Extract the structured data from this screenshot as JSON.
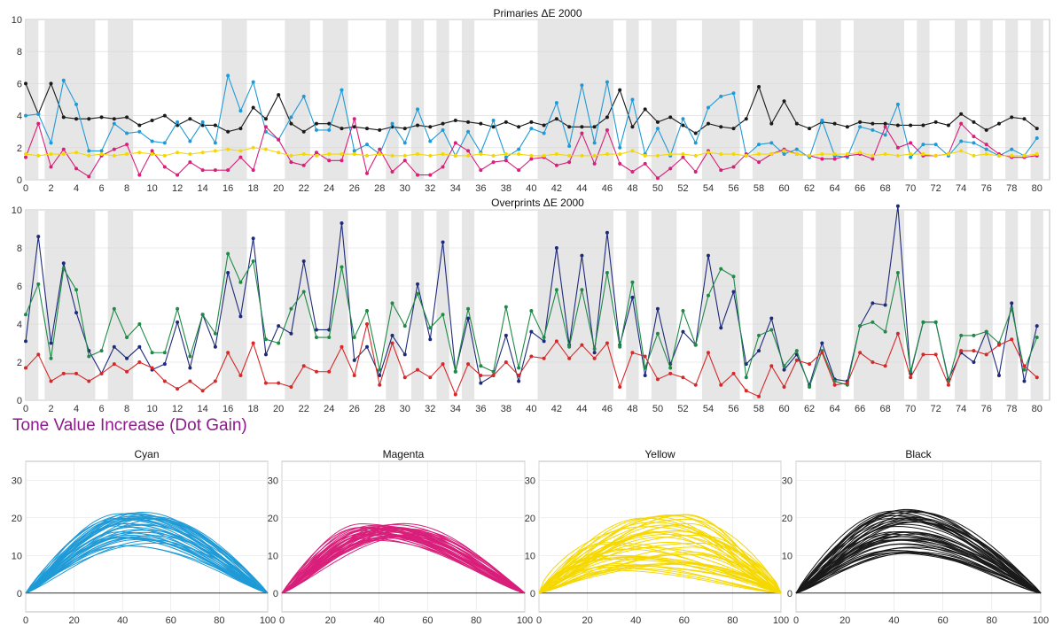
{
  "section_title": "Tone Value Increase (Dot Gain)",
  "chart_data": [
    {
      "id": "primaries",
      "type": "line",
      "title": "Primaries  ΔE 2000",
      "x_ticks": [
        0,
        2,
        4,
        6,
        8,
        10,
        12,
        14,
        16,
        18,
        20,
        22,
        24,
        26,
        28,
        30,
        32,
        34,
        36,
        38,
        40,
        42,
        44,
        46,
        48,
        50,
        52,
        54,
        56,
        58,
        60,
        62,
        64,
        66,
        68,
        70,
        72,
        74,
        76,
        78,
        80
      ],
      "y_ticks": [
        0,
        2,
        4,
        6,
        8,
        10
      ],
      "xlim": [
        0,
        81
      ],
      "ylim": [
        0,
        10
      ],
      "shaded_x_ranges": [
        [
          0.0,
          1.0
        ],
        [
          1.5,
          5.5
        ],
        [
          6.5,
          8.5
        ],
        [
          15.5,
          17.5
        ],
        [
          20.5,
          22.5
        ],
        [
          23.5,
          25.5
        ],
        [
          28.5,
          29.5
        ],
        [
          30.5,
          31.5
        ],
        [
          32.5,
          33.5
        ],
        [
          34.5,
          35.5
        ],
        [
          40.5,
          46.5
        ],
        [
          47.5,
          48.5
        ],
        [
          49.5,
          51.5
        ],
        [
          53.5,
          56.5
        ],
        [
          57.5,
          61.5
        ],
        [
          62.5,
          64.5
        ],
        [
          65.5,
          69.5
        ],
        [
          70.5,
          71.5
        ],
        [
          73.5,
          74.5
        ],
        [
          75.5,
          76.5
        ],
        [
          77.5,
          78.5
        ],
        [
          79.5,
          80.5
        ]
      ],
      "grid": true,
      "series": [
        {
          "color": "#1a1a1a",
          "values": [
            6.0,
            4.1,
            6.0,
            3.9,
            3.8,
            3.8,
            3.9,
            3.8,
            3.9,
            3.4,
            3.7,
            4.0,
            3.4,
            3.8,
            3.4,
            3.4,
            3.0,
            3.2,
            4.5,
            3.8,
            5.3,
            3.5,
            3.0,
            3.5,
            3.5,
            3.2,
            3.3,
            3.2,
            3.1,
            3.3,
            3.2,
            3.4,
            3.3,
            3.5,
            3.7,
            3.6,
            3.5,
            3.3,
            3.6,
            3.3,
            3.6,
            3.4,
            3.8,
            3.3,
            3.3,
            3.3,
            3.9,
            5.6,
            3.3,
            4.4,
            3.6,
            3.9,
            3.4,
            2.9,
            3.5,
            3.3,
            3.2,
            3.8,
            5.8,
            3.5,
            4.9,
            3.5,
            3.2,
            3.6,
            3.5,
            3.3,
            3.6,
            3.5,
            3.5,
            3.4,
            3.4,
            3.4,
            3.6,
            3.4,
            4.1,
            3.6,
            3.1,
            3.5,
            3.9,
            3.8,
            3.2
          ]
        },
        {
          "color": "#1f9ad6",
          "values": [
            4.0,
            4.1,
            2.3,
            6.2,
            4.7,
            1.8,
            1.8,
            3.5,
            2.9,
            3.0,
            2.4,
            2.3,
            3.6,
            2.4,
            3.6,
            2.3,
            6.5,
            4.3,
            6.1,
            3.0,
            2.5,
            3.9,
            5.2,
            3.1,
            3.1,
            5.6,
            1.8,
            2.2,
            1.6,
            3.5,
            2.3,
            4.4,
            2.4,
            3.1,
            1.5,
            3.0,
            1.7,
            3.7,
            1.4,
            1.9,
            3.2,
            2.9,
            4.8,
            2.1,
            5.9,
            2.3,
            6.1,
            2.0,
            5.0,
            1.6,
            3.2,
            1.5,
            3.8,
            2.3,
            4.5,
            5.2,
            5.4,
            1.5,
            2.2,
            2.3,
            1.6,
            1.9,
            1.4,
            3.7,
            1.5,
            1.4,
            3.3,
            3.1,
            2.8,
            4.7,
            1.4,
            2.2,
            2.2,
            1.5,
            2.4,
            2.3,
            1.9,
            1.5,
            1.9,
            1.5,
            2.6
          ]
        },
        {
          "color": "#d81f7a",
          "values": [
            1.4,
            3.5,
            0.8,
            1.9,
            0.7,
            0.2,
            1.5,
            1.9,
            2.2,
            0.3,
            1.8,
            0.8,
            0.3,
            1.1,
            0.6,
            0.6,
            0.6,
            1.4,
            0.6,
            3.3,
            2.5,
            1.1,
            0.9,
            1.7,
            1.2,
            1.2,
            3.8,
            0.4,
            1.9,
            0.5,
            1.2,
            0.3,
            0.3,
            0.8,
            2.3,
            1.8,
            0.6,
            1.1,
            1.2,
            0.6,
            1.3,
            1.4,
            0.9,
            1.1,
            2.9,
            1.0,
            3.1,
            1.0,
            0.5,
            1.0,
            0.1,
            0.7,
            1.4,
            0.5,
            1.8,
            0.6,
            0.8,
            1.6,
            1.1,
            1.6,
            1.9,
            1.6,
            1.5,
            1.3,
            1.3,
            1.5,
            1.6,
            1.3,
            3.3,
            2.0,
            2.3,
            1.5,
            1.5,
            1.6,
            3.5,
            2.7,
            2.2,
            1.6,
            1.4,
            1.4,
            1.5
          ]
        },
        {
          "color": "#f5d800",
          "values": [
            1.6,
            1.5,
            1.6,
            1.6,
            1.7,
            1.5,
            1.6,
            1.5,
            1.6,
            1.7,
            1.6,
            1.5,
            1.7,
            1.6,
            1.7,
            1.8,
            1.9,
            1.8,
            2.0,
            1.9,
            1.7,
            1.5,
            1.6,
            1.5,
            1.6,
            1.6,
            1.6,
            1.5,
            1.6,
            1.5,
            1.5,
            1.6,
            1.5,
            1.6,
            1.5,
            1.5,
            1.6,
            1.5,
            1.6,
            1.6,
            1.5,
            1.5,
            1.6,
            1.5,
            1.5,
            1.5,
            1.6,
            1.6,
            1.8,
            1.5,
            1.5,
            1.6,
            1.6,
            1.5,
            1.7,
            1.6,
            1.6,
            1.5,
            1.6,
            1.6,
            1.8,
            1.6,
            1.5,
            1.6,
            1.6,
            1.6,
            1.7,
            1.5,
            1.6,
            1.5,
            1.6,
            1.6,
            1.5,
            1.6,
            1.8,
            1.5,
            1.6,
            1.5,
            1.5,
            1.5,
            1.6
          ]
        }
      ]
    },
    {
      "id": "overprints",
      "type": "line",
      "title": "Overprints  ΔE 2000",
      "x_ticks": [
        0,
        2,
        4,
        6,
        8,
        10,
        12,
        14,
        16,
        18,
        20,
        22,
        24,
        26,
        28,
        30,
        32,
        34,
        36,
        38,
        40,
        42,
        44,
        46,
        48,
        50,
        52,
        54,
        56,
        58,
        60,
        62,
        64,
        66,
        68,
        70,
        72,
        74,
        76,
        78,
        80
      ],
      "y_ticks": [
        0,
        2,
        4,
        6,
        8,
        10
      ],
      "xlim": [
        0,
        81
      ],
      "ylim": [
        0,
        10
      ],
      "shaded_x_ranges": [
        [
          0.0,
          1.0
        ],
        [
          1.5,
          5.5
        ],
        [
          6.5,
          8.5
        ],
        [
          15.5,
          17.5
        ],
        [
          20.5,
          22.5
        ],
        [
          23.5,
          25.5
        ],
        [
          28.5,
          29.5
        ],
        [
          30.5,
          31.5
        ],
        [
          32.5,
          33.5
        ],
        [
          34.5,
          35.5
        ],
        [
          40.5,
          46.5
        ],
        [
          47.5,
          48.5
        ],
        [
          49.5,
          51.5
        ],
        [
          53.5,
          56.5
        ],
        [
          57.5,
          61.5
        ],
        [
          62.5,
          64.5
        ],
        [
          65.5,
          69.5
        ],
        [
          70.5,
          71.5
        ],
        [
          73.5,
          74.5
        ],
        [
          75.5,
          76.5
        ],
        [
          77.5,
          78.5
        ],
        [
          79.5,
          80.5
        ]
      ],
      "grid": true,
      "series": [
        {
          "color": "#1e2a7a",
          "values": [
            3.1,
            8.6,
            3.0,
            7.2,
            4.6,
            2.6,
            1.4,
            2.8,
            2.2,
            2.8,
            1.6,
            1.9,
            4.1,
            1.7,
            4.5,
            2.8,
            6.7,
            4.4,
            8.5,
            2.4,
            3.9,
            3.5,
            7.3,
            3.7,
            3.7,
            9.3,
            2.1,
            2.8,
            1.3,
            3.4,
            2.4,
            6.1,
            3.2,
            8.3,
            1.5,
            4.3,
            0.9,
            1.3,
            3.4,
            1.0,
            3.6,
            3.1,
            8.0,
            2.9,
            7.6,
            2.5,
            8.8,
            2.9,
            5.4,
            1.3,
            4.8,
            1.9,
            3.6,
            2.9,
            7.6,
            3.8,
            5.7,
            1.9,
            2.6,
            4.3,
            1.6,
            2.4,
            0.8,
            3.0,
            1.1,
            1.0,
            3.9,
            5.1,
            5.0,
            10.2,
            1.4,
            4.1,
            4.1,
            1.1,
            2.5,
            2.0,
            3.6,
            1.3,
            5.1,
            1.0,
            3.9
          ]
        },
        {
          "color": "#1f8a46",
          "values": [
            4.5,
            6.1,
            2.2,
            6.9,
            5.8,
            2.3,
            2.6,
            4.8,
            3.3,
            4.0,
            2.5,
            2.5,
            4.8,
            2.3,
            4.5,
            3.5,
            7.7,
            6.2,
            7.3,
            3.2,
            3.0,
            4.8,
            5.7,
            3.3,
            3.3,
            7.0,
            3.3,
            4.7,
            1.6,
            5.1,
            3.9,
            5.6,
            3.8,
            4.5,
            1.5,
            4.8,
            1.8,
            1.5,
            4.9,
            1.7,
            4.7,
            3.3,
            5.8,
            2.8,
            5.8,
            2.7,
            6.7,
            2.8,
            6.2,
            1.7,
            3.5,
            1.7,
            4.7,
            2.9,
            5.5,
            6.9,
            6.5,
            1.2,
            3.4,
            3.7,
            1.8,
            2.6,
            0.7,
            2.6,
            1.0,
            0.8,
            3.9,
            4.1,
            3.6,
            6.7,
            1.5,
            4.1,
            4.1,
            1.0,
            3.4,
            3.4,
            3.6,
            3.0,
            4.8,
            1.6,
            3.3
          ]
        },
        {
          "color": "#d62828",
          "values": [
            1.7,
            2.4,
            1.0,
            1.4,
            1.4,
            1.0,
            1.4,
            1.9,
            1.5,
            2.0,
            1.7,
            1.0,
            0.6,
            1.0,
            0.5,
            1.0,
            2.5,
            1.3,
            3.0,
            0.9,
            0.9,
            0.7,
            1.8,
            1.5,
            1.5,
            2.8,
            1.3,
            4.0,
            0.8,
            3.0,
            1.2,
            1.6,
            1.2,
            1.9,
            0.3,
            1.9,
            1.3,
            1.3,
            2.0,
            1.3,
            2.3,
            2.2,
            3.1,
            2.2,
            2.9,
            2.2,
            3.0,
            0.7,
            2.5,
            2.3,
            1.1,
            1.4,
            1.2,
            0.8,
            2.5,
            0.8,
            1.4,
            0.5,
            0.2,
            1.8,
            0.7,
            2.1,
            1.9,
            2.5,
            0.8,
            0.9,
            2.5,
            2.0,
            1.8,
            3.5,
            1.2,
            2.4,
            2.4,
            0.8,
            2.6,
            2.6,
            2.4,
            2.9,
            3.2,
            1.8,
            1.2
          ]
        }
      ]
    },
    {
      "id": "tvi-cyan",
      "type": "line",
      "title": "Cyan",
      "color": "#1f9ad6",
      "x_ticks": [
        0,
        20,
        40,
        60,
        80,
        100
      ],
      "y_ticks": [
        0,
        10,
        20,
        30
      ],
      "xlim": [
        0,
        100
      ],
      "ylim": [
        -5,
        35
      ],
      "curve_count": 40,
      "peak_range": [
        12.5,
        21.5
      ],
      "peak_x_range": [
        35,
        55
      ]
    },
    {
      "id": "tvi-magenta",
      "type": "line",
      "title": "Magenta",
      "color": "#d81f7a",
      "x_ticks": [
        0,
        20,
        40,
        60,
        80,
        100
      ],
      "y_ticks": [
        0,
        10,
        20,
        30
      ],
      "xlim": [
        0,
        100
      ],
      "ylim": [
        -5,
        35
      ],
      "curve_count": 40,
      "peak_range": [
        14,
        18.5
      ],
      "peak_x_range": [
        32,
        55
      ]
    },
    {
      "id": "tvi-yellow",
      "type": "line",
      "title": "Yellow",
      "color": "#f5d800",
      "x_ticks": [
        0,
        20,
        40,
        60,
        80,
        100
      ],
      "y_ticks": [
        0,
        10,
        20,
        30
      ],
      "xlim": [
        0,
        100
      ],
      "ylim": [
        -5,
        35
      ],
      "curve_count": 45,
      "peak_range": [
        6,
        21
      ],
      "peak_x_range": [
        25,
        70
      ]
    },
    {
      "id": "tvi-black",
      "type": "line",
      "title": "Black",
      "color": "#1a1a1a",
      "x_ticks": [
        0,
        20,
        40,
        60,
        80,
        100
      ],
      "y_ticks": [
        0,
        10,
        20,
        30
      ],
      "xlim": [
        0,
        100
      ],
      "ylim": [
        -5,
        35
      ],
      "curve_count": 45,
      "peak_range": [
        10.5,
        22.5
      ],
      "peak_x_range": [
        38,
        50
      ]
    }
  ]
}
